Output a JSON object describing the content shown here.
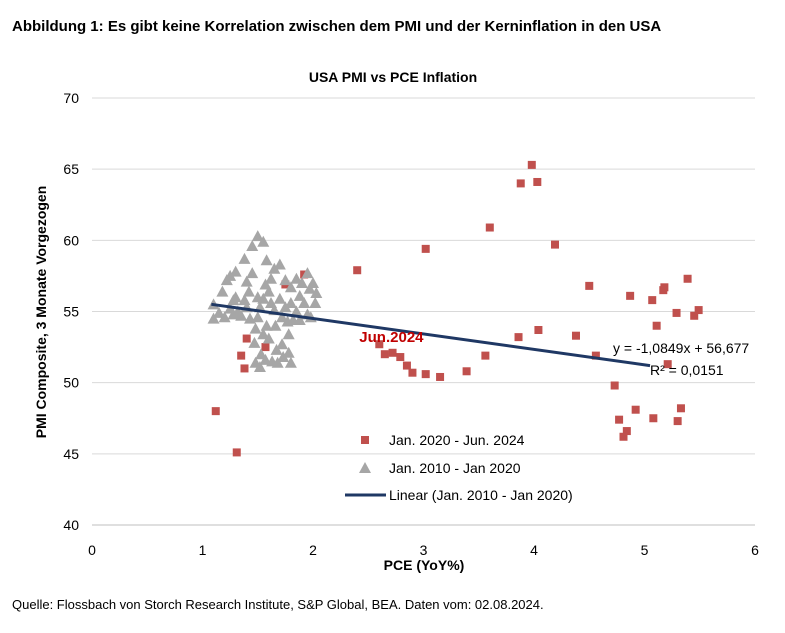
{
  "figure_title": "Abbildung 1: Es gibt keine Korrelation zwischen dem PMI und der Kerninflation in den USA",
  "source": "Quelle: Flossbach von Storch Research Institute, S&P Global, BEA. Daten vom: 02.08.2024.",
  "colors": {
    "square": "#c0504d",
    "triangle": "#a6a6a6",
    "trend": "#1f3864",
    "annotation": "#c00000"
  },
  "chart_data": {
    "type": "scatter",
    "title": "USA PMI vs PCE Inflation",
    "xlabel": "PCE (YoY%)",
    "ylabel": "PMI Composite, 3 Monate Vorgezogen",
    "xlim": [
      0,
      6
    ],
    "ylim": [
      40,
      70
    ],
    "xticks": [
      "0",
      "1",
      "2",
      "3",
      "4",
      "5",
      "6"
    ],
    "yticks": [
      "40",
      "45",
      "50",
      "55",
      "60",
      "65",
      "70"
    ],
    "grid": "horizontal",
    "legend_position": "bottom-center",
    "series": [
      {
        "name": "Jan. 2020 - Jun. 2024",
        "marker": "square",
        "points": [
          [
            1.12,
            48.0
          ],
          [
            1.31,
            45.1
          ],
          [
            1.35,
            51.9
          ],
          [
            1.38,
            51.0
          ],
          [
            1.4,
            53.1
          ],
          [
            1.57,
            52.5
          ],
          [
            1.75,
            56.9
          ],
          [
            1.92,
            57.6
          ],
          [
            2.4,
            57.9
          ],
          [
            2.6,
            52.7
          ],
          [
            2.65,
            52.0
          ],
          [
            2.72,
            52.1
          ],
          [
            2.79,
            51.8
          ],
          [
            2.85,
            51.2
          ],
          [
            2.9,
            50.7
          ],
          [
            3.02,
            50.6
          ],
          [
            3.02,
            59.4
          ],
          [
            3.15,
            50.4
          ],
          [
            3.39,
            50.8
          ],
          [
            3.56,
            51.9
          ],
          [
            3.6,
            60.9
          ],
          [
            3.86,
            53.2
          ],
          [
            3.88,
            64.0
          ],
          [
            3.98,
            65.3
          ],
          [
            4.03,
            64.1
          ],
          [
            4.04,
            53.7
          ],
          [
            4.19,
            59.7
          ],
          [
            4.38,
            53.3
          ],
          [
            4.5,
            56.8
          ],
          [
            4.56,
            51.9
          ],
          [
            4.73,
            49.8
          ],
          [
            4.77,
            47.4
          ],
          [
            4.81,
            46.2
          ],
          [
            4.84,
            46.6
          ],
          [
            4.87,
            56.1
          ],
          [
            4.92,
            48.1
          ],
          [
            5.07,
            55.8
          ],
          [
            5.08,
            47.5
          ],
          [
            5.11,
            54.0
          ],
          [
            5.17,
            56.5
          ],
          [
            5.18,
            56.7
          ],
          [
            5.21,
            51.3
          ],
          [
            5.29,
            54.9
          ],
          [
            5.3,
            47.3
          ],
          [
            5.33,
            48.2
          ],
          [
            5.39,
            57.3
          ],
          [
            5.45,
            54.7
          ],
          [
            5.49,
            55.1
          ]
        ]
      },
      {
        "name": "Jan. 2010 - Jan 2020",
        "marker": "triangle",
        "points": [
          [
            1.1,
            55.5
          ],
          [
            1.1,
            54.5
          ],
          [
            1.15,
            54.9
          ],
          [
            1.18,
            56.4
          ],
          [
            1.2,
            54.6
          ],
          [
            1.22,
            57.2
          ],
          [
            1.25,
            57.5
          ],
          [
            1.25,
            55.2
          ],
          [
            1.28,
            55.8
          ],
          [
            1.28,
            54.8
          ],
          [
            1.3,
            57.8
          ],
          [
            1.3,
            56.0
          ],
          [
            1.32,
            55.0
          ],
          [
            1.35,
            54.7
          ],
          [
            1.38,
            55.8
          ],
          [
            1.38,
            58.7
          ],
          [
            1.4,
            57.1
          ],
          [
            1.4,
            55.3
          ],
          [
            1.42,
            56.4
          ],
          [
            1.43,
            54.5
          ],
          [
            1.45,
            57.7
          ],
          [
            1.45,
            59.6
          ],
          [
            1.47,
            52.8
          ],
          [
            1.48,
            53.8
          ],
          [
            1.48,
            51.4
          ],
          [
            1.5,
            60.3
          ],
          [
            1.5,
            56.0
          ],
          [
            1.5,
            54.6
          ],
          [
            1.52,
            55.3
          ],
          [
            1.52,
            51.1
          ],
          [
            1.53,
            52.0
          ],
          [
            1.55,
            59.9
          ],
          [
            1.55,
            55.9
          ],
          [
            1.55,
            53.4
          ],
          [
            1.57,
            56.9
          ],
          [
            1.57,
            51.6
          ],
          [
            1.58,
            58.6
          ],
          [
            1.58,
            54.0
          ],
          [
            1.6,
            56.4
          ],
          [
            1.6,
            53.1
          ],
          [
            1.62,
            57.3
          ],
          [
            1.62,
            55.6
          ],
          [
            1.63,
            51.5
          ],
          [
            1.65,
            58.0
          ],
          [
            1.65,
            55.1
          ],
          [
            1.66,
            54.0
          ],
          [
            1.67,
            52.3
          ],
          [
            1.68,
            51.4
          ],
          [
            1.7,
            58.3
          ],
          [
            1.7,
            55.9
          ],
          [
            1.72,
            54.6
          ],
          [
            1.72,
            52.7
          ],
          [
            1.73,
            51.8
          ],
          [
            1.75,
            55.3
          ],
          [
            1.75,
            57.2
          ],
          [
            1.77,
            54.3
          ],
          [
            1.78,
            52.1
          ],
          [
            1.78,
            53.4
          ],
          [
            1.8,
            56.7
          ],
          [
            1.8,
            51.4
          ],
          [
            1.8,
            55.6
          ],
          [
            1.82,
            54.4
          ],
          [
            1.85,
            57.3
          ],
          [
            1.85,
            55.0
          ],
          [
            1.88,
            56.1
          ],
          [
            1.88,
            54.4
          ],
          [
            1.9,
            57.0
          ],
          [
            1.92,
            55.6
          ],
          [
            1.95,
            57.7
          ],
          [
            1.95,
            54.8
          ],
          [
            1.97,
            56.6
          ],
          [
            1.98,
            54.6
          ],
          [
            2.0,
            57.0
          ],
          [
            2.02,
            55.6
          ],
          [
            2.03,
            56.3
          ]
        ]
      }
    ],
    "trendline": {
      "name": "Linear (Jan. 2010 - Jan 2020)",
      "slope": -1.0849,
      "intercept": 56.677,
      "x_range": [
        1.08,
        5.05
      ],
      "equation": "y = -1,0849x + 56,677",
      "r2_label": "R² = 0,0151"
    },
    "annotation": {
      "text": "Jun.2024",
      "x": 2.6,
      "y": 52.7
    }
  }
}
